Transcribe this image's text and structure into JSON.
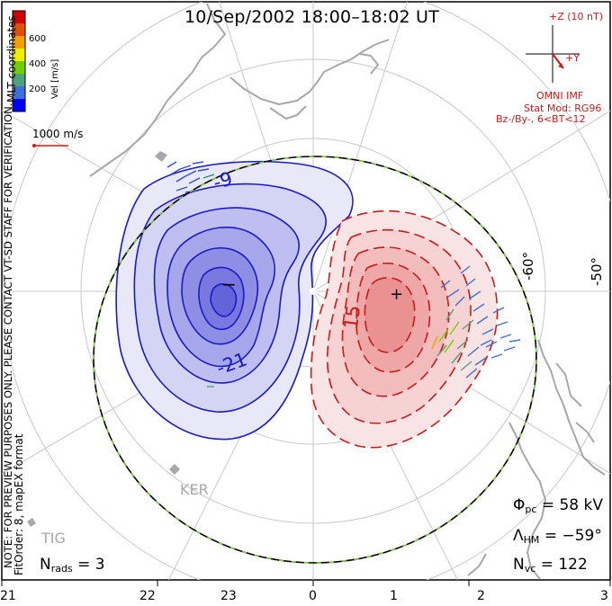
{
  "title": "10/Sep/2002 18:00–18:02 UT",
  "colorbar": {
    "unit_label": "Vel [m/s]",
    "ticks": [
      "600",
      "400",
      "200"
    ],
    "colors": [
      "#0000ff",
      "#3c6fd9",
      "#4fa07f",
      "#6fd000",
      "#f0ee00",
      "#f5a000",
      "#e05000",
      "#d00000"
    ]
  },
  "coord_label": "MLT coordinates",
  "scale_vector_label": "1000 m/s",
  "side_notice": "NOTE: FOR PREVIEW PURPOSES ONLY. PLEASE CONTACT VT-SD STAFF FOR VERIFICATION.",
  "fit_info": "FitOrder: 8, mapEX format",
  "imf": {
    "z_label": "+Z (10 nT)",
    "y_label": "+Y",
    "omni": "OMNI IMF",
    "stat_mod": "Stat Mod: RG96",
    "condition": "Bz-/By-, 6<BT<12"
  },
  "contours": {
    "neg_labels": [
      "-9",
      "-21"
    ],
    "neg_center": "−",
    "pos_labels": [
      "15"
    ],
    "pos_center": "+",
    "neg_color": "#1a1acc",
    "pos_color": "#cc1a1a"
  },
  "lat_labels": [
    "-60°",
    "-50°"
  ],
  "stations": [
    "KER",
    "TIG"
  ],
  "stats": {
    "phi_symbol": "Φ",
    "phi_sub": "pc",
    "phi_value": "= 58 kV",
    "lambda_symbol": "Λ",
    "lambda_sub": "HM",
    "lambda_value": "= −59°",
    "nvc_symbol": "N",
    "nvc_sub": "vc",
    "nvc_value": "= 122",
    "nrads_symbol": "N",
    "nrads_sub": "rads",
    "nrads_value": "= 3"
  },
  "mlt_ticks": [
    "21",
    "22",
    "23",
    "0",
    "1",
    "2",
    "3"
  ]
}
